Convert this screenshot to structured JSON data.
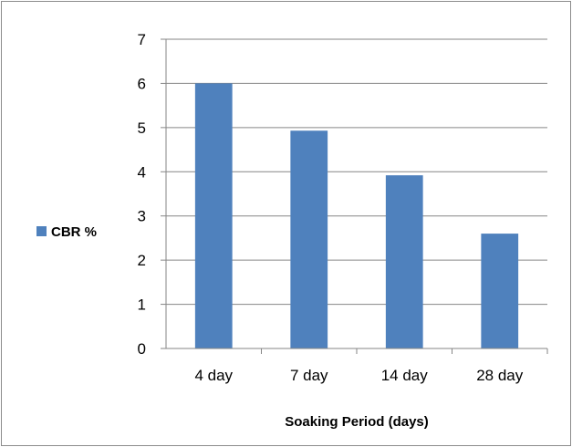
{
  "chart_data": {
    "type": "bar",
    "categories": [
      "4 day",
      "7 day",
      "14 day",
      "28 day"
    ],
    "series": [
      {
        "name": "CBR %",
        "values": [
          6.0,
          4.93,
          3.92,
          2.6
        ]
      }
    ],
    "xlabel": "Soaking Period (days)",
    "ylabel": "",
    "ylim": [
      0,
      7
    ],
    "yticks": [
      0,
      1,
      2,
      3,
      4,
      5,
      6,
      7
    ],
    "grid": true,
    "legend_position": "left",
    "colors": {
      "bar": "#4f81bd",
      "grid": "#868686",
      "axis": "#868686"
    }
  }
}
